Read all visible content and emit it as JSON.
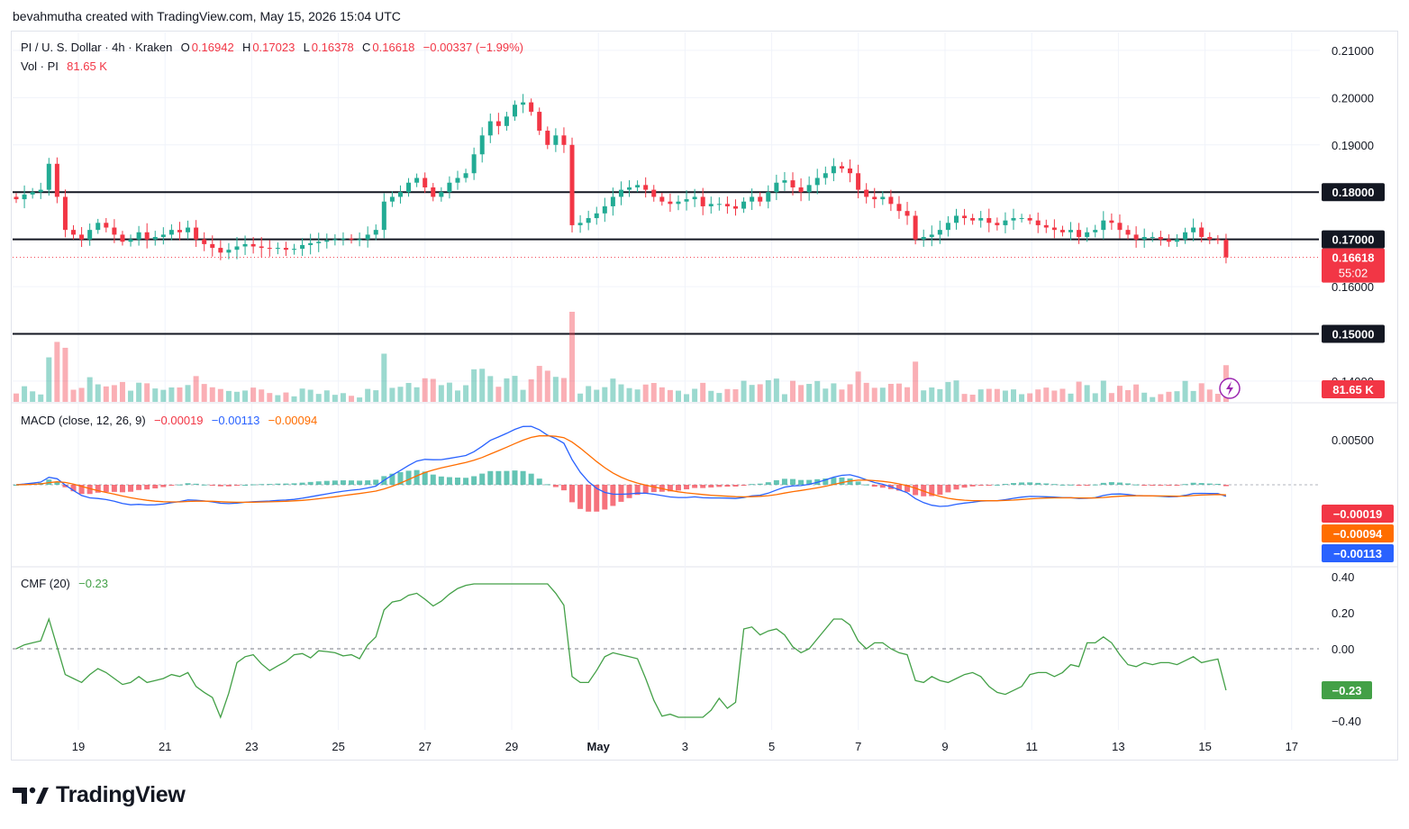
{
  "credit": "bevahmutha created with TradingView.com, May 15, 2026 15:04 UTC",
  "brand": "TradingView",
  "colors": {
    "up": "#22ab94",
    "down": "#f23645",
    "macd": "#2962ff",
    "signal": "#ff6d00",
    "cmf": "#43a047",
    "level": "#131722"
  },
  "legend": {
    "symbol": "PI / U. S. Dollar · 4h · Kraken",
    "o_label": "O",
    "o_value": "0.16942",
    "h_label": "H",
    "h_value": "0.17023",
    "l_label": "L",
    "l_value": "0.16378",
    "c_label": "C",
    "c_value": "0.16618",
    "change": "−0.00337 (−1.99%)",
    "vol_label": "Vol · PI",
    "vol_value": "81.65 K"
  },
  "macd_legend": {
    "label": "MACD (close, 12, 26, 9)",
    "hist": "−0.00019",
    "macd": "−0.00113",
    "signal": "−0.00094"
  },
  "cmf_legend": {
    "label": "CMF (20)",
    "value": "−0.23"
  },
  "badges": {
    "price_current": "0.16618",
    "countdown": "55:02",
    "volume": "81.65 K",
    "level_180": "0.18000",
    "level_170": "0.17000",
    "level_150": "0.15000",
    "macd_hist": "−0.00019",
    "macd_signal": "−0.00094",
    "macd_line": "−0.00113",
    "cmf": "−0.23"
  },
  "chart_data": {
    "type": "candlestick",
    "timeframe": "4h",
    "price_axis": {
      "ticks": [
        "0.21000",
        "0.20000",
        "0.19000",
        "0.18000",
        "0.17000",
        "0.16000",
        "0.15000",
        "0.14000"
      ],
      "ylim": [
        0.1356,
        0.2138
      ]
    },
    "x_ticks": [
      "19",
      "21",
      "23",
      "25",
      "27",
      "29",
      "May",
      "3",
      "5",
      "7",
      "9",
      "11",
      "13",
      "15",
      "17"
    ],
    "horizontal_levels": [
      0.18,
      0.17,
      0.15
    ],
    "close_series": [
      0.1785,
      0.1795,
      0.18,
      0.1805,
      0.186,
      0.179,
      0.172,
      0.171,
      0.17,
      0.172,
      0.1735,
      0.1725,
      0.171,
      0.1695,
      0.17,
      0.1715,
      0.17,
      0.1705,
      0.171,
      0.172,
      0.1715,
      0.1725,
      0.17,
      0.169,
      0.1682,
      0.1672,
      0.1678,
      0.1685,
      0.169,
      0.1685,
      0.1682,
      0.168,
      0.1682,
      0.1678,
      0.168,
      0.1688,
      0.1692,
      0.1695,
      0.1698,
      0.17,
      0.1702,
      0.17,
      0.17,
      0.171,
      0.172,
      0.178,
      0.179,
      0.18,
      0.182,
      0.183,
      0.181,
      0.179,
      0.18,
      0.182,
      0.183,
      0.184,
      0.188,
      0.192,
      0.195,
      0.194,
      0.196,
      0.1985,
      0.199,
      0.197,
      0.193,
      0.19,
      0.192,
      0.19,
      0.173,
      0.1735,
      0.1745,
      0.1755,
      0.177,
      0.179,
      0.1805,
      0.181,
      0.1815,
      0.1805,
      0.179,
      0.178,
      0.1775,
      0.178,
      0.1785,
      0.179,
      0.177,
      0.1775,
      0.1775,
      0.177,
      0.1765,
      0.178,
      0.179,
      0.178,
      0.18,
      0.182,
      0.1825,
      0.181,
      0.18,
      0.1815,
      0.183,
      0.184,
      0.1855,
      0.185,
      0.184,
      0.1805,
      0.179,
      0.1785,
      0.179,
      0.1775,
      0.176,
      0.175,
      0.17,
      0.1705,
      0.171,
      0.172,
      0.1735,
      0.175,
      0.1745,
      0.174,
      0.1745,
      0.1735,
      0.173,
      0.174,
      0.1745,
      0.1745,
      0.174,
      0.173,
      0.1725,
      0.172,
      0.1715,
      0.172,
      0.1705,
      0.1715,
      0.172,
      0.174,
      0.1735,
      0.172,
      0.171,
      0.17,
      0.1705,
      0.1705,
      0.17,
      0.1695,
      0.17,
      0.1715,
      0.1725,
      0.1705,
      0.17,
      0.1699,
      0.1662
    ],
    "macd": {
      "range": [
        -0.008,
        0.008
      ],
      "ticks": [
        "0.00500"
      ]
    },
    "cmf": {
      "ylim": [
        -0.4,
        0.4
      ],
      "ticks": [
        "0.40",
        "0.20",
        "0.00",
        "−0.20",
        "−0.40"
      ],
      "last": -0.23
    }
  }
}
